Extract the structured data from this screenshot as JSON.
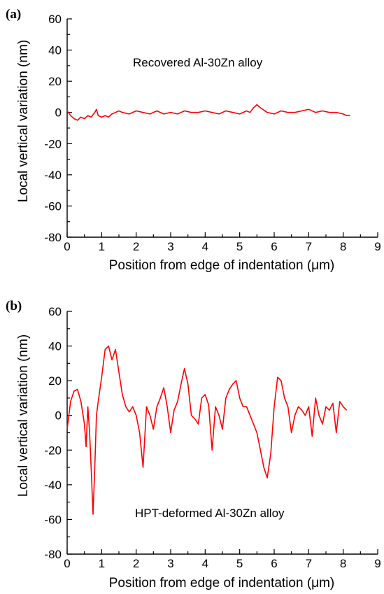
{
  "chart_data": [
    {
      "panel_label": "(a)",
      "type": "line",
      "annotation": "Recovered Al-30Zn alloy",
      "xlabel": "Position from edge of indentation (μm)",
      "ylabel": "Local vertical variation (nm)",
      "xlim": [
        0,
        9
      ],
      "ylim": [
        -80,
        60
      ],
      "xticks": [
        0,
        1,
        2,
        3,
        4,
        5,
        6,
        7,
        8,
        9
      ],
      "yticks": [
        -80,
        -60,
        -40,
        -20,
        0,
        20,
        40,
        60
      ],
      "grid": false,
      "series": [
        {
          "color": "#ff0000",
          "x": [
            0.0,
            0.1,
            0.2,
            0.3,
            0.4,
            0.5,
            0.6,
            0.7,
            0.8,
            0.85,
            0.9,
            1.0,
            1.1,
            1.2,
            1.3,
            1.4,
            1.5,
            1.6,
            1.8,
            2.0,
            2.2,
            2.4,
            2.6,
            2.8,
            3.0,
            3.2,
            3.4,
            3.6,
            3.8,
            4.0,
            4.2,
            4.4,
            4.6,
            4.8,
            5.0,
            5.2,
            5.3,
            5.4,
            5.5,
            5.6,
            5.8,
            6.0,
            6.2,
            6.4,
            6.6,
            6.8,
            7.0,
            7.2,
            7.4,
            7.6,
            7.8,
            8.0,
            8.1,
            8.2
          ],
          "y": [
            1,
            -2,
            -4,
            -5,
            -3,
            -4,
            -2,
            -3,
            0,
            2,
            -2,
            -3,
            -2,
            -3,
            -1,
            0,
            1,
            0,
            -1,
            1,
            0,
            -1,
            1,
            -1,
            0,
            -1,
            1,
            0,
            0,
            1,
            0,
            -1,
            1,
            0,
            -1,
            1,
            0,
            3,
            5,
            3,
            0,
            -1,
            1,
            0,
            0,
            1,
            2,
            0,
            1,
            0,
            0,
            -1,
            -2,
            -2
          ]
        }
      ]
    },
    {
      "panel_label": "(b)",
      "type": "line",
      "annotation": "HPT-deformed Al-30Zn alloy",
      "xlabel": "Position from edge of indentation (μm)",
      "ylabel": "Local vertical variation (nm)",
      "xlim": [
        0,
        9
      ],
      "ylim": [
        -80,
        60
      ],
      "xticks": [
        0,
        1,
        2,
        3,
        4,
        5,
        6,
        7,
        8,
        9
      ],
      "yticks": [
        -80,
        -60,
        -40,
        -20,
        0,
        20,
        40,
        60
      ],
      "grid": false,
      "series": [
        {
          "color": "#ff0000",
          "x": [
            0.0,
            0.1,
            0.2,
            0.3,
            0.4,
            0.5,
            0.55,
            0.6,
            0.65,
            0.7,
            0.75,
            0.8,
            0.85,
            0.9,
            1.0,
            1.1,
            1.2,
            1.3,
            1.4,
            1.5,
            1.6,
            1.7,
            1.8,
            1.9,
            2.0,
            2.1,
            2.2,
            2.3,
            2.4,
            2.5,
            2.6,
            2.7,
            2.8,
            2.9,
            3.0,
            3.1,
            3.2,
            3.3,
            3.4,
            3.5,
            3.6,
            3.7,
            3.8,
            3.9,
            4.0,
            4.1,
            4.2,
            4.3,
            4.4,
            4.5,
            4.6,
            4.7,
            4.8,
            4.9,
            5.0,
            5.1,
            5.2,
            5.3,
            5.4,
            5.5,
            5.6,
            5.7,
            5.8,
            5.9,
            6.0,
            6.1,
            6.2,
            6.3,
            6.4,
            6.5,
            6.6,
            6.7,
            6.8,
            6.9,
            7.0,
            7.1,
            7.2,
            7.3,
            7.4,
            7.5,
            7.6,
            7.7,
            7.8,
            7.9,
            8.0,
            8.1
          ],
          "y": [
            -8,
            8,
            14,
            15,
            8,
            -5,
            -18,
            5,
            -10,
            -32,
            -57,
            -30,
            0,
            8,
            22,
            38,
            40,
            32,
            38,
            25,
            12,
            5,
            2,
            5,
            0,
            -10,
            -30,
            5,
            0,
            -8,
            5,
            10,
            16,
            5,
            -10,
            3,
            8,
            18,
            27,
            18,
            0,
            -2,
            -5,
            10,
            12,
            6,
            -20,
            5,
            0,
            -8,
            10,
            15,
            18,
            20,
            10,
            5,
            5,
            0,
            -5,
            -10,
            -20,
            -30,
            -36,
            -22,
            5,
            22,
            20,
            10,
            5,
            -10,
            0,
            5,
            3,
            0,
            5,
            -12,
            10,
            0,
            -5,
            5,
            3,
            7,
            -10,
            8,
            5,
            3
          ]
        }
      ]
    }
  ]
}
